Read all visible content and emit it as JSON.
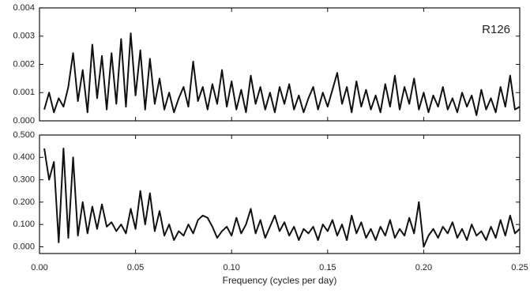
{
  "chart_data": [
    {
      "type": "line",
      "annotation": "R126",
      "color": "#111111",
      "x": [
        0.0025,
        0.005,
        0.0075,
        0.01,
        0.0125,
        0.015,
        0.0175,
        0.02,
        0.0225,
        0.025,
        0.0275,
        0.03,
        0.0325,
        0.035,
        0.0375,
        0.04,
        0.0425,
        0.045,
        0.0475,
        0.05,
        0.0525,
        0.055,
        0.0575,
        0.06,
        0.0625,
        0.065,
        0.0675,
        0.07,
        0.0725,
        0.075,
        0.0775,
        0.08,
        0.0825,
        0.085,
        0.0875,
        0.09,
        0.0925,
        0.095,
        0.0975,
        0.1,
        0.1025,
        0.105,
        0.1075,
        0.11,
        0.1125,
        0.115,
        0.1175,
        0.12,
        0.1225,
        0.125,
        0.1275,
        0.13,
        0.1325,
        0.135,
        0.1375,
        0.14,
        0.1425,
        0.145,
        0.1475,
        0.15,
        0.1525,
        0.155,
        0.1575,
        0.16,
        0.1625,
        0.165,
        0.1675,
        0.17,
        0.1725,
        0.175,
        0.1775,
        0.18,
        0.1825,
        0.185,
        0.1875,
        0.19,
        0.1925,
        0.195,
        0.1975,
        0.2,
        0.2025,
        0.205,
        0.2075,
        0.21,
        0.2125,
        0.215,
        0.2175,
        0.22,
        0.2225,
        0.225,
        0.2275,
        0.23,
        0.2325,
        0.235,
        0.2375,
        0.24,
        0.2425,
        0.245,
        0.2475,
        0.25
      ],
      "values": [
        0.0004,
        0.001,
        0.0003,
        0.0008,
        0.0005,
        0.0012,
        0.0024,
        0.0007,
        0.0018,
        0.0003,
        0.0027,
        0.0008,
        0.0023,
        0.0004,
        0.0024,
        0.0006,
        0.0029,
        0.0005,
        0.0031,
        0.0009,
        0.0025,
        0.0004,
        0.0022,
        0.0006,
        0.0015,
        0.0004,
        0.001,
        0.0003,
        0.0008,
        0.0012,
        0.0005,
        0.0021,
        0.0007,
        0.0012,
        0.0004,
        0.0013,
        0.0006,
        0.0018,
        0.0005,
        0.0014,
        0.0004,
        0.0011,
        0.0003,
        0.0016,
        0.0006,
        0.0012,
        0.0004,
        0.001,
        0.0003,
        0.0012,
        0.0006,
        0.0013,
        0.0004,
        0.0009,
        0.0003,
        0.0008,
        0.0012,
        0.0004,
        0.001,
        0.0005,
        0.0011,
        0.0017,
        0.0006,
        0.0012,
        0.0003,
        0.0014,
        0.0005,
        0.0011,
        0.0004,
        0.0009,
        0.0003,
        0.0013,
        0.0005,
        0.0016,
        0.0004,
        0.0012,
        0.0006,
        0.0015,
        0.0004,
        0.001,
        0.0003,
        0.0009,
        0.0005,
        0.0012,
        0.0004,
        0.0008,
        0.0003,
        0.001,
        0.0005,
        0.0009,
        0.0002,
        0.0011,
        0.0004,
        0.0008,
        0.0003,
        0.0012,
        0.0005,
        0.0016,
        0.0004,
        0.0005
      ],
      "xlim": [
        0,
        0.25
      ],
      "xticks": [
        0,
        0.05,
        0.1,
        0.15,
        0.2,
        0.25
      ],
      "ylim": [
        0,
        0.004
      ],
      "yticks": [
        {
          "value": 0,
          "label": "0.000"
        },
        {
          "value": 0.001,
          "label": "0.001"
        },
        {
          "value": 0.002,
          "label": "0.002"
        },
        {
          "value": 0.003,
          "label": "0.003"
        },
        {
          "value": 0.004,
          "label": "0.004"
        }
      ]
    },
    {
      "type": "line",
      "color": "#111111",
      "x_label": "Frequency (cycles per day)",
      "x": [
        0.0025,
        0.005,
        0.0075,
        0.01,
        0.0125,
        0.015,
        0.0175,
        0.02,
        0.0225,
        0.025,
        0.0275,
        0.03,
        0.0325,
        0.035,
        0.0375,
        0.04,
        0.0425,
        0.045,
        0.0475,
        0.05,
        0.0525,
        0.055,
        0.0575,
        0.06,
        0.0625,
        0.065,
        0.0675,
        0.07,
        0.0725,
        0.075,
        0.0775,
        0.08,
        0.0825,
        0.085,
        0.0875,
        0.09,
        0.0925,
        0.095,
        0.0975,
        0.1,
        0.1025,
        0.105,
        0.1075,
        0.11,
        0.1125,
        0.115,
        0.1175,
        0.12,
        0.1225,
        0.125,
        0.1275,
        0.13,
        0.1325,
        0.135,
        0.1375,
        0.14,
        0.1425,
        0.145,
        0.1475,
        0.15,
        0.1525,
        0.155,
        0.1575,
        0.16,
        0.1625,
        0.165,
        0.1675,
        0.17,
        0.1725,
        0.175,
        0.1775,
        0.18,
        0.1825,
        0.185,
        0.1875,
        0.19,
        0.1925,
        0.195,
        0.1975,
        0.2,
        0.2025,
        0.205,
        0.2075,
        0.21,
        0.2125,
        0.215,
        0.2175,
        0.22,
        0.2225,
        0.225,
        0.2275,
        0.23,
        0.2325,
        0.235,
        0.2375,
        0.24,
        0.2425,
        0.245,
        0.2475,
        0.25
      ],
      "values": [
        0.44,
        0.3,
        0.38,
        0.02,
        0.44,
        0.04,
        0.4,
        0.05,
        0.2,
        0.06,
        0.18,
        0.08,
        0.19,
        0.09,
        0.11,
        0.07,
        0.1,
        0.06,
        0.17,
        0.08,
        0.25,
        0.1,
        0.24,
        0.07,
        0.16,
        0.05,
        0.1,
        0.03,
        0.07,
        0.05,
        0.1,
        0.06,
        0.12,
        0.14,
        0.13,
        0.09,
        0.04,
        0.07,
        0.09,
        0.05,
        0.13,
        0.06,
        0.1,
        0.17,
        0.06,
        0.12,
        0.04,
        0.09,
        0.14,
        0.07,
        0.11,
        0.05,
        0.09,
        0.03,
        0.08,
        0.06,
        0.09,
        0.03,
        0.1,
        0.07,
        0.12,
        0.05,
        0.1,
        0.03,
        0.14,
        0.06,
        0.11,
        0.04,
        0.08,
        0.03,
        0.09,
        0.05,
        0.12,
        0.04,
        0.08,
        0.05,
        0.13,
        0.06,
        0.2,
        0,
        0.05,
        0.08,
        0.04,
        0.09,
        0.06,
        0.11,
        0.04,
        0.08,
        0.03,
        0.1,
        0.05,
        0.07,
        0.03,
        0.09,
        0.04,
        0.12,
        0.05,
        0.14,
        0.06,
        0.08
      ],
      "xlim": [
        0,
        0.25
      ],
      "xticks": [
        {
          "value": 0,
          "label": "0.00"
        },
        {
          "value": 0.05,
          "label": "0.05"
        },
        {
          "value": 0.1,
          "label": "0.10"
        },
        {
          "value": 0.15,
          "label": "0.15"
        },
        {
          "value": 0.2,
          "label": "0.20"
        },
        {
          "value": 0.25,
          "label": "0.25"
        }
      ],
      "ylim": [
        -0.03,
        0.5
      ],
      "yticks": [
        {
          "value": 0,
          "label": "0.000"
        },
        {
          "value": 0.1,
          "label": "0.100"
        },
        {
          "value": 0.2,
          "label": "0.200"
        },
        {
          "value": 0.3,
          "label": "0.300"
        },
        {
          "value": 0.4,
          "label": "0.400"
        },
        {
          "value": 0.5,
          "label": "0.500"
        }
      ]
    }
  ]
}
